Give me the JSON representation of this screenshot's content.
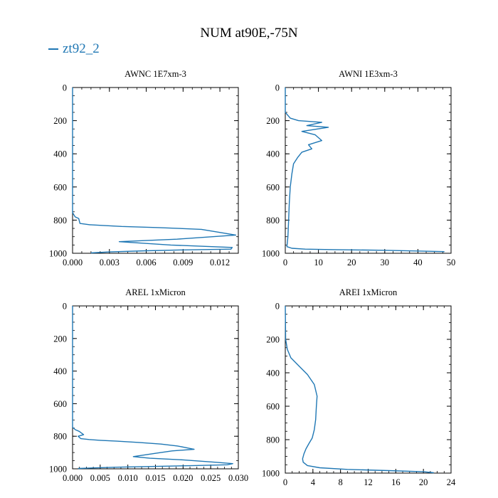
{
  "title": "NUM at90E,-75N",
  "legend": {
    "label": "zt92_2",
    "color": "#1f77b4"
  },
  "chart_data": [
    {
      "type": "line",
      "title": "AWNC  1E7xm-3",
      "xlim": [
        0,
        0.0135
      ],
      "ylim": [
        1000,
        0
      ],
      "y_inverted": true,
      "x_ticks": [
        0,
        0.003,
        0.006,
        0.009,
        0.012
      ],
      "x_tick_labels": [
        "0.000",
        "0.003",
        "0.006",
        "0.009",
        "0.012"
      ],
      "y_ticks": [
        0,
        200,
        400,
        600,
        800,
        1000
      ],
      "y_tick_labels": [
        "0",
        "200",
        "400",
        "600",
        "800",
        "1000"
      ],
      "series": [
        {
          "color": "#1f77b4",
          "x": [
            0.0,
            0.0,
            0.0002,
            0.0005,
            0.0006,
            0.0014,
            0.0025,
            0.004,
            0.007,
            0.0105,
            0.0133,
            0.0085,
            0.0038,
            0.008,
            0.013,
            0.0129,
            0.009,
            0.006,
            0.003,
            0.0015
          ],
          "y": [
            0,
            755,
            780,
            790,
            820,
            828,
            832,
            838,
            845,
            856,
            890,
            915,
            930,
            950,
            965,
            975,
            980,
            985,
            992,
            998
          ]
        }
      ]
    },
    {
      "type": "line",
      "title": "AWNI  1E3xm-3",
      "xlim": [
        0,
        50
      ],
      "ylim": [
        1000,
        0
      ],
      "y_inverted": true,
      "x_ticks": [
        0,
        10,
        20,
        30,
        40,
        50
      ],
      "x_tick_labels": [
        "0",
        "10",
        "20",
        "30",
        "40",
        "50"
      ],
      "y_ticks": [
        0,
        200,
        400,
        600,
        800,
        1000
      ],
      "y_tick_labels": [
        "0",
        "200",
        "400",
        "600",
        "800",
        "1000"
      ],
      "series": [
        {
          "color": "#1f77b4",
          "x": [
            0,
            0,
            1.5,
            4,
            11,
            6.5,
            13,
            5,
            9,
            11,
            7,
            8,
            5,
            3.8,
            2.5,
            2,
            1.5,
            1.2,
            1.0,
            0.8,
            0.5,
            2,
            6,
            15,
            30,
            48
          ],
          "y": [
            0,
            150,
            185,
            200,
            210,
            230,
            240,
            265,
            285,
            320,
            345,
            370,
            390,
            420,
            460,
            520,
            600,
            700,
            800,
            900,
            960,
            970,
            975,
            978,
            982,
            990
          ]
        }
      ]
    },
    {
      "type": "line",
      "title": "AREL  1xMicron",
      "xlim": [
        0,
        0.03
      ],
      "ylim": [
        1000,
        0
      ],
      "y_inverted": true,
      "x_ticks": [
        0,
        0.005,
        0.01,
        0.015,
        0.02,
        0.025,
        0.03
      ],
      "x_tick_labels": [
        "0.000",
        "0.005",
        "0.010",
        "0.015",
        "0.020",
        "0.025",
        "0.030"
      ],
      "y_ticks": [
        0,
        200,
        400,
        600,
        800,
        1000
      ],
      "y_tick_labels": [
        "0",
        "200",
        "400",
        "600",
        "800",
        "1000"
      ],
      "series": [
        {
          "color": "#1f77b4",
          "x": [
            0.0,
            0.0,
            0.0005,
            0.0012,
            0.002,
            0.001,
            0.0015,
            0.003,
            0.005,
            0.008,
            0.012,
            0.016,
            0.019,
            0.022,
            0.018,
            0.015,
            0.011,
            0.014,
            0.02,
            0.026,
            0.029,
            0.028,
            0.022,
            0.015,
            0.008,
            0.003,
            0.001
          ],
          "y": [
            0,
            745,
            760,
            770,
            790,
            800,
            815,
            820,
            825,
            830,
            838,
            848,
            860,
            880,
            890,
            905,
            925,
            935,
            945,
            960,
            968,
            975,
            980,
            985,
            990,
            995,
            998
          ]
        }
      ]
    },
    {
      "type": "line",
      "title": "AREI  1xMicron",
      "xlim": [
        0,
        24
      ],
      "ylim": [
        1000,
        0
      ],
      "y_inverted": true,
      "x_ticks": [
        0,
        4,
        8,
        12,
        16,
        20,
        24
      ],
      "x_tick_labels": [
        "0",
        "4",
        "8",
        "12",
        "16",
        "20",
        "24"
      ],
      "y_ticks": [
        0,
        200,
        400,
        600,
        800,
        1000
      ],
      "y_tick_labels": [
        "0",
        "200",
        "400",
        "600",
        "800",
        "1000"
      ],
      "series": [
        {
          "color": "#1f77b4",
          "x": [
            0,
            0.05,
            0.3,
            0.8,
            2,
            3.2,
            4.2,
            4.6,
            4.5,
            4.4,
            4.2,
            3.9,
            3.4,
            3.0,
            2.7,
            2.5,
            2.6,
            3.2,
            5,
            9,
            15,
            20,
            21.5
          ],
          "y": [
            0,
            200,
            260,
            310,
            360,
            410,
            470,
            540,
            600,
            680,
            740,
            790,
            825,
            855,
            885,
            915,
            935,
            955,
            968,
            978,
            985,
            992,
            998
          ]
        }
      ]
    }
  ]
}
